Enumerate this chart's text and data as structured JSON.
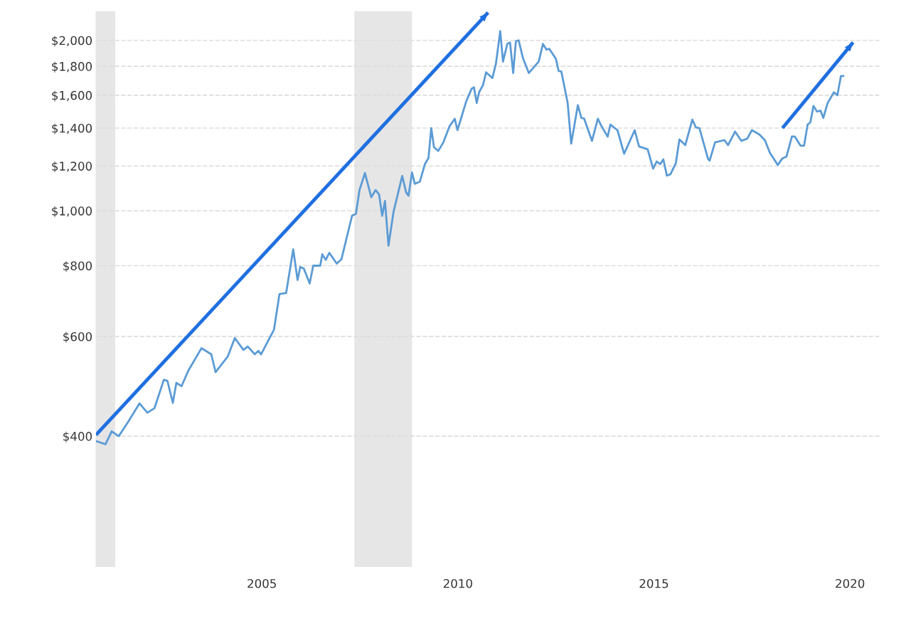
{
  "chart_data": {
    "type": "line",
    "log": "y",
    "xlim": [
      2000.77,
      2020.76
    ],
    "xticks": [
      2005,
      2010,
      2015,
      2020
    ],
    "ylim": [
      235,
      2250
    ],
    "yticks": [
      {
        "value": 400,
        "label": "$400"
      },
      {
        "value": 600,
        "label": "$600"
      },
      {
        "value": 800,
        "label": "$800"
      },
      {
        "value": 1000,
        "label": "$1,000"
      },
      {
        "value": 1200,
        "label": "$1,200"
      },
      {
        "value": 1400,
        "label": "$1,400"
      },
      {
        "value": 1600,
        "label": "$1,600"
      },
      {
        "value": 1800,
        "label": "$1,800"
      },
      {
        "value": 2000,
        "label": "$2,000"
      }
    ],
    "grid": "y",
    "legend": false,
    "line_style": "solid",
    "bands": [
      {
        "axis": "x",
        "from": 2000.77,
        "to": 2001.26,
        "color": "#e6e6e6"
      },
      {
        "axis": "x",
        "from": 2007.36,
        "to": 2008.83,
        "color": "#e6e6e6"
      }
    ],
    "series": [
      {
        "color": "#5b9bd5",
        "x": [
          2000.77,
          2001.01,
          2001.17,
          2001.35,
          2001.59,
          2001.88,
          2002.08,
          2002.26,
          2002.5,
          2002.59,
          2002.73,
          2002.82,
          2002.95,
          2003.13,
          2003.46,
          2003.71,
          2003.82,
          2004.13,
          2004.31,
          2004.53,
          2004.64,
          2004.82,
          2004.91,
          2004.98,
          2005.31,
          2005.45,
          2005.62,
          2005.8,
          2005.91,
          2005.98,
          2006.07,
          2006.22,
          2006.31,
          2006.49,
          2006.54,
          2006.63,
          2006.72,
          2006.91,
          2007.03,
          2007.3,
          2007.4,
          2007.49,
          2007.63,
          2007.79,
          2007.9,
          2007.99,
          2008.07,
          2008.14,
          2008.23,
          2008.36,
          2008.58,
          2008.68,
          2008.74,
          2008.83,
          2008.9,
          2009.03,
          2009.16,
          2009.25,
          2009.32,
          2009.39,
          2009.5,
          2009.63,
          2009.79,
          2009.92,
          2009.99,
          2010.21,
          2010.35,
          2010.41,
          2010.48,
          2010.54,
          2010.64,
          2010.72,
          2010.88,
          2010.97,
          2011.08,
          2011.15,
          2011.26,
          2011.33,
          2011.41,
          2011.48,
          2011.55,
          2011.66,
          2011.81,
          2012.06,
          2012.17,
          2012.26,
          2012.33,
          2012.5,
          2012.57,
          2012.64,
          2012.8,
          2012.89,
          2013.06,
          2013.15,
          2013.22,
          2013.42,
          2013.57,
          2013.66,
          2013.82,
          2013.89,
          2014.07,
          2014.24,
          2014.51,
          2014.62,
          2014.84,
          2014.98,
          2015.07,
          2015.16,
          2015.24,
          2015.33,
          2015.42,
          2015.56,
          2015.65,
          2015.8,
          2015.98,
          2016.07,
          2016.16,
          2016.38,
          2016.42,
          2016.56,
          2016.8,
          2016.89,
          2017.07,
          2017.23,
          2017.38,
          2017.5,
          2017.69,
          2017.83,
          2017.96,
          2018.16,
          2018.27,
          2018.38,
          2018.52,
          2018.59,
          2018.74,
          2018.83,
          2018.92,
          2018.99,
          2019.07,
          2019.16,
          2019.25,
          2019.32,
          2019.43,
          2019.59,
          2019.68,
          2019.77,
          2019.83
        ],
        "values": [
          392,
          387,
          408,
          400,
          424,
          457,
          440,
          448,
          503,
          501,
          458,
          497,
          490,
          523,
          572,
          558,
          519,
          553,
          596,
          568,
          576,
          558,
          566,
          558,
          617,
          713,
          716,
          855,
          755,
          796,
          791,
          744,
          800,
          800,
          838,
          819,
          843,
          807,
          821,
          980,
          988,
          1088,
          1166,
          1057,
          1088,
          1069,
          980,
          1041,
          868,
          997,
          1152,
          1078,
          1063,
          1169,
          1116,
          1126,
          1210,
          1239,
          1400,
          1295,
          1276,
          1321,
          1412,
          1454,
          1388,
          1559,
          1643,
          1652,
          1550,
          1619,
          1667,
          1756,
          1716,
          1818,
          2077,
          1834,
          1971,
          1983,
          1751,
          1994,
          2000,
          1860,
          1751,
          1834,
          1971,
          1926,
          1933,
          1855,
          1766,
          1761,
          1550,
          1314,
          1537,
          1459,
          1455,
          1329,
          1454,
          1412,
          1352,
          1420,
          1388,
          1261,
          1388,
          1299,
          1284,
          1187,
          1222,
          1209,
          1233,
          1154,
          1160,
          1215,
          1337,
          1306,
          1449,
          1404,
          1400,
          1236,
          1226,
          1321,
          1333,
          1306,
          1380,
          1329,
          1341,
          1388,
          1364,
          1333,
          1265,
          1205,
          1236,
          1247,
          1353,
          1353,
          1303,
          1303,
          1420,
          1433,
          1532,
          1497,
          1503,
          1459,
          1550,
          1619,
          1600,
          1730,
          1730
        ]
      },
      {
        "type": "line",
        "color": "#1f6fe0",
        "x": [
          2000.77,
          2010.77
        ],
        "values": [
          402,
          2239
        ]
      },
      {
        "type": "line",
        "color": "#1f6fe0",
        "x": [
          2018.28,
          2020.08
        ],
        "values": [
          1400,
          1983
        ]
      }
    ]
  }
}
